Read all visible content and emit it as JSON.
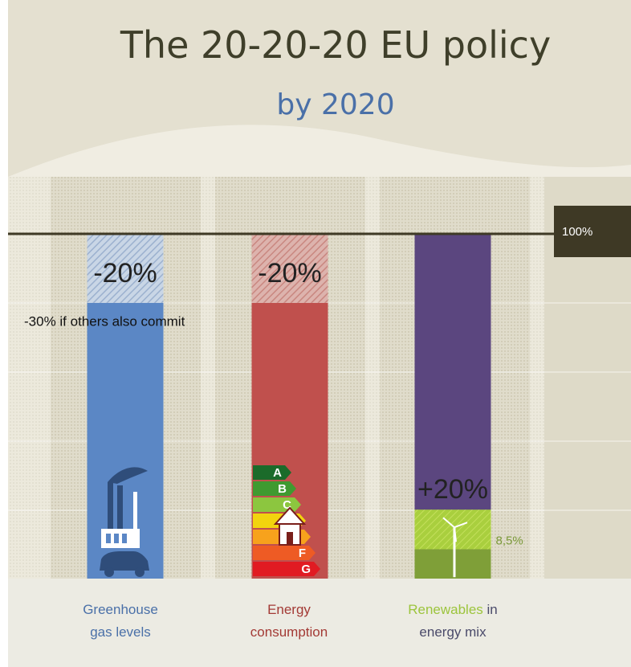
{
  "chart_data": {
    "type": "bar",
    "title": "The 20-20-20 EU policy",
    "subtitle": "by 2020",
    "reference_label": "100%",
    "reference_value": 100,
    "ylim": [
      0,
      100
    ],
    "grid": true,
    "categories": [
      "Greenhouse gas levels",
      "Energy consumption",
      "Renewables in energy mix"
    ],
    "bars": [
      {
        "category_line1": "Greenhouse",
        "category_line2": "gas levels",
        "highlight_word": "",
        "value": 80,
        "target_change": -20,
        "label": "-20%",
        "note": "-30% if others also commit",
        "note_value": 70,
        "color": "#5b87c5",
        "label_color": "#4a70a8"
      },
      {
        "category_line1": "Energy",
        "category_line2": "consumption",
        "highlight_word": "",
        "value": 80,
        "target_change": -20,
        "label": "-20%",
        "color": "#c0504d",
        "label_color": "#a33a35",
        "energy_labels": [
          "A",
          "B",
          "C",
          "D",
          "E",
          "F",
          "G"
        ]
      },
      {
        "category_line1_highlight": "Renewables",
        "category_line1_rest": " in",
        "category_line2": "energy mix",
        "value": 100,
        "current_value": 8.5,
        "current_label": "8,5%",
        "target_value": 20,
        "label": "+20%",
        "color": "#5b467f",
        "green_color": "#8db33a",
        "label_color": "#7b9a3a",
        "highlight_color": "#9cc43c"
      }
    ]
  }
}
